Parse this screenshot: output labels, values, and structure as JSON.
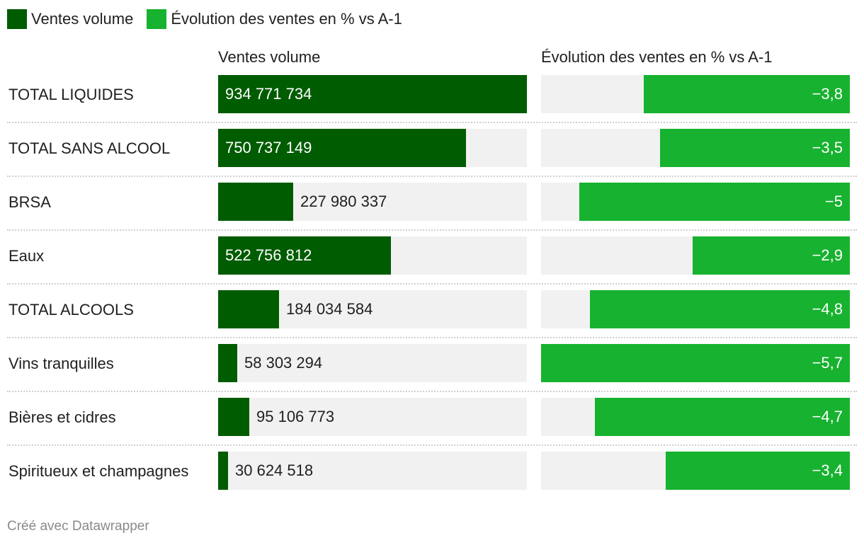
{
  "legend": [
    {
      "label": "Ventes volume",
      "color": "#005c00"
    },
    {
      "label": "Évolution des ventes en % vs A-1",
      "color": "#17b22f"
    }
  ],
  "columns": {
    "volume_title": "Ventes volume",
    "evolution_title": "Évolution des ventes en % vs A-1"
  },
  "footer": "Créé avec Datawrapper",
  "chart_data": {
    "type": "bar",
    "title": "",
    "categories": [
      "TOTAL LIQUIDES",
      "TOTAL SANS ALCOOL",
      "BRSA",
      "Eaux",
      "TOTAL ALCOOLS",
      "Vins tranquilles",
      "Bières et cidres",
      "Spiritueux et champagnes"
    ],
    "series": [
      {
        "name": "Ventes volume",
        "color": "#005c00",
        "values": [
          934771734,
          750737149,
          227980337,
          522756812,
          184034584,
          58303294,
          95106773,
          30624518
        ],
        "labels": [
          "934 771 734",
          "750 737 149",
          "227 980 337",
          "522 756 812",
          "184 034 584",
          "58 303 294",
          "95 106 773",
          "30 624 518"
        ],
        "max": 934771734
      },
      {
        "name": "Évolution des ventes en % vs A-1",
        "color": "#17b22f",
        "values": [
          -3.8,
          -3.5,
          -5,
          -2.9,
          -4.8,
          -5.7,
          -4.7,
          -3.4
        ],
        "labels": [
          "−3,8",
          "−3,5",
          "−5",
          "−2,9",
          "−4,8",
          "−5,7",
          "−4,7",
          "−3,4"
        ],
        "range": [
          -5.7,
          0
        ]
      }
    ]
  }
}
